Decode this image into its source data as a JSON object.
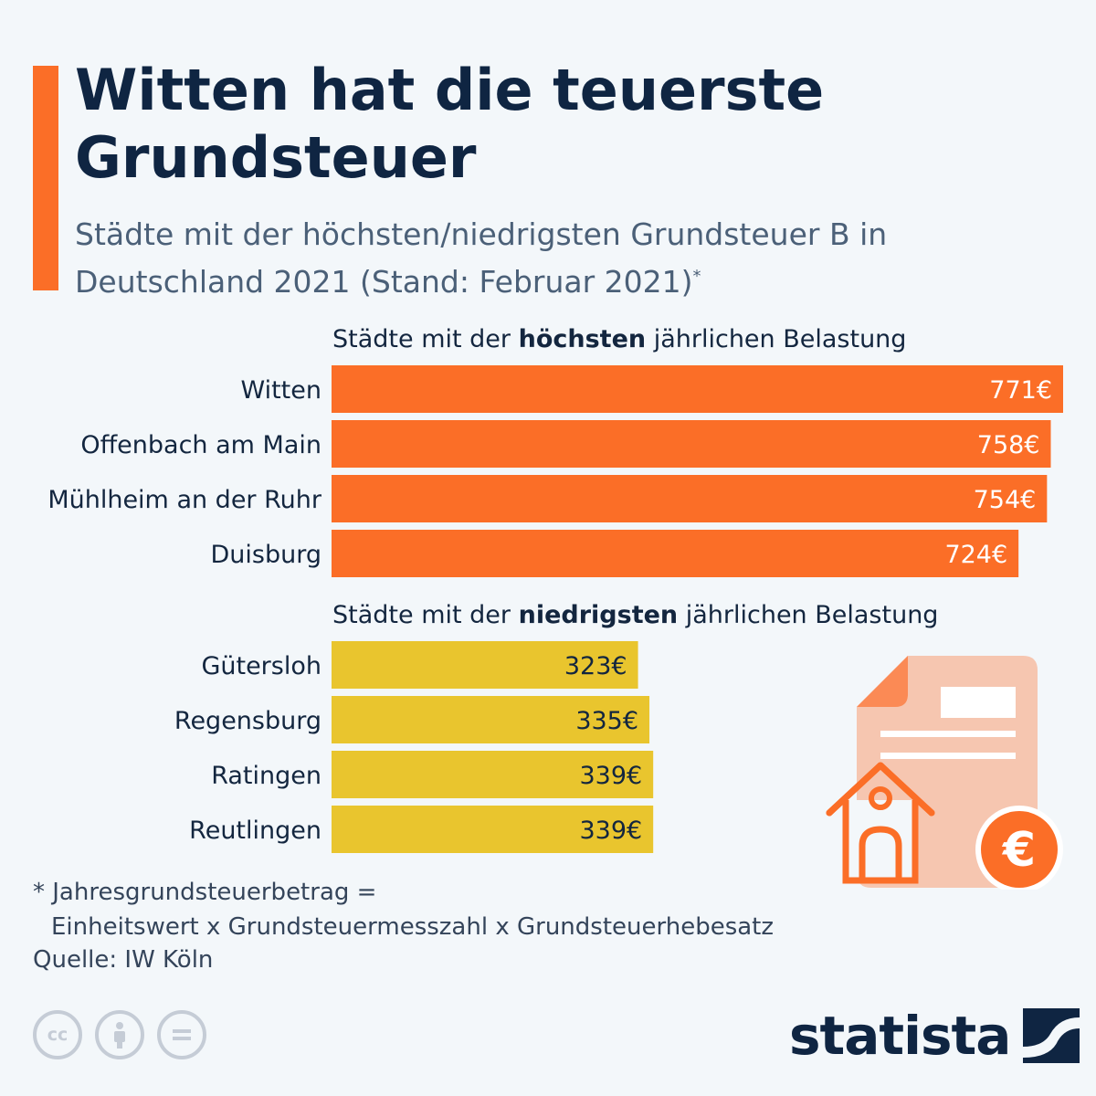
{
  "title": "Witten hat die teuerste Grundsteuer",
  "subtitle": "Städte mit der höchsten/niedrigsten Grundsteuer B in Deutschland 2021 (Stand: Februar 2021)",
  "subtitle_mark": "*",
  "sections": [
    {
      "pre": "Städte mit der ",
      "bold": "höchsten",
      "post": " jährlichen Belastung"
    },
    {
      "pre": "Städte mit der ",
      "bold": "niedrigsten",
      "post": " jährlichen Belastung"
    }
  ],
  "footnote": {
    "line1": "* Jahresgrundsteuerbetrag =",
    "line2": "Einheitswert x Grundsteuermesszahl x Grundsteuerhebesatz"
  },
  "source": "Quelle: IW Köln",
  "brand": {
    "name": "statista"
  },
  "license_icons": [
    "cc-icon",
    "attribution-icon",
    "no-derivatives-icon"
  ],
  "colors": {
    "accent": "#fb6e27",
    "high_bar": "#fb6e27",
    "low_bar": "#e9c52e",
    "dark": "#0f2542"
  },
  "chart_data": {
    "type": "bar",
    "orientation": "horizontal",
    "unit": "€",
    "groups": [
      {
        "name": "Städte mit der höchsten jährlichen Belastung",
        "color": "#fb6e27",
        "categories": [
          "Witten",
          "Offenbach am Main",
          "Mühlheim an der Ruhr",
          "Duisburg"
        ],
        "values": [
          771,
          758,
          754,
          724
        ],
        "labels": [
          "771€",
          "758€",
          "754€",
          "724€"
        ]
      },
      {
        "name": "Städte mit der niedrigsten jährlichen Belastung",
        "color": "#e9c52e",
        "categories": [
          "Gütersloh",
          "Regensburg",
          "Ratingen",
          "Reutlingen"
        ],
        "values": [
          323,
          335,
          339,
          339
        ],
        "labels": [
          "323€",
          "335€",
          "339€",
          "339€"
        ]
      }
    ],
    "xlim": [
      0,
      771
    ]
  }
}
